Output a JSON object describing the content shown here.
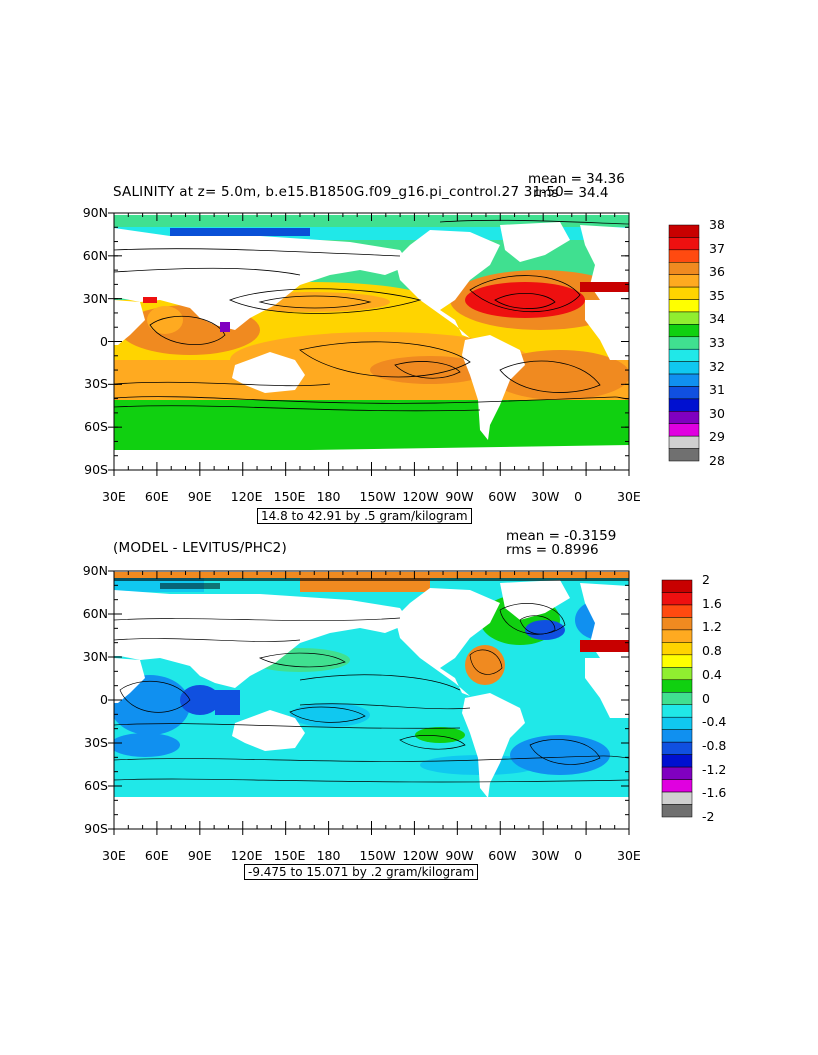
{
  "panel1": {
    "title": "SALINITY at z=    5.0m, b.e15.B1850G.f09_g16.pi_control.27 31-50",
    "mean_label": "mean = 34.36",
    "rms_label": "rms = 34.4",
    "range_label": "14.8 to 42.91 by .5 gram/kilogram",
    "colorbar_labels": [
      "38",
      "37",
      "36",
      "35",
      "34",
      "33",
      "32",
      "31",
      "30",
      "29",
      "28"
    ],
    "colorbar_colors": [
      "#c80000",
      "#ee1010",
      "#ff4a10",
      "#f08a20",
      "#ffaa20",
      "#ffd400",
      "#ffff00",
      "#90ee30",
      "#10d010",
      "#40e090",
      "#20e8e8",
      "#10c8f0",
      "#1090f0",
      "#1050e0",
      "#0010d0",
      "#8000c0",
      "#e000e0",
      "#d0d0d0",
      "#707070"
    ]
  },
  "panel2": {
    "title": "(MODEL - LEVITUS/PHC2)",
    "mean_label": "mean = -0.3159",
    "rms_label": "rms = 0.8996",
    "range_label": "-9.475 to 15.071 by .2 gram/kilogram",
    "colorbar_labels": [
      "2",
      "1.6",
      "1.2",
      "0.8",
      "0.4",
      "0",
      "-0.4",
      "-0.8",
      "-1.2",
      "-1.6",
      "-2"
    ],
    "colorbar_colors": [
      "#c80000",
      "#ee1010",
      "#ff4a10",
      "#f08a20",
      "#ffaa20",
      "#ffd400",
      "#ffff00",
      "#90ee30",
      "#10d010",
      "#40e090",
      "#20e8e8",
      "#10c8f0",
      "#1090f0",
      "#1050e0",
      "#0010d0",
      "#8000c0",
      "#e000e0",
      "#d0d0d0",
      "#707070"
    ]
  },
  "lat_labels": [
    "90N",
    "60N",
    "30N",
    "0",
    "30S",
    "60S",
    "90S"
  ],
  "lon_labels": [
    "30E",
    "60E",
    "90E",
    "120E",
    "150E",
    "180",
    "150W",
    "120W",
    "90W",
    "60W",
    "30W",
    "0",
    "30E"
  ],
  "ocean_colors": {
    "panel1_background": "#40e090",
    "panel2_background": "#20e8e8",
    "land": "#ffffff"
  }
}
